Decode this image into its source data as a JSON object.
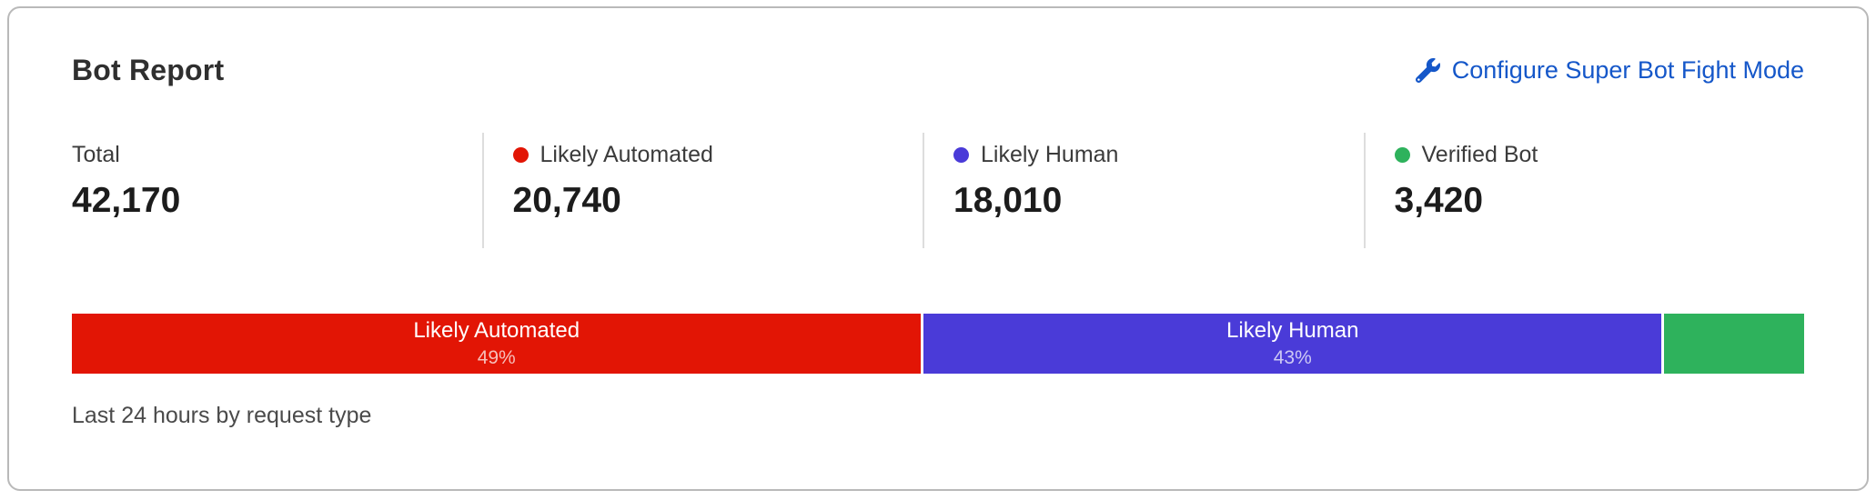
{
  "card": {
    "title": "Bot Report",
    "footnote": "Last 24 hours by request type",
    "configure_link": {
      "label": "Configure Super Bot Fight Mode",
      "icon": "wrench-icon",
      "color": "#1557c9"
    }
  },
  "stats": [
    {
      "label": "Total",
      "value": "42,170",
      "color": null
    },
    {
      "label": "Likely Automated",
      "value": "20,740",
      "color": "#e21505"
    },
    {
      "label": "Likely Human",
      "value": "18,010",
      "color": "#4a3bd8"
    },
    {
      "label": "Verified Bot",
      "value": "3,420",
      "color": "#2eb25c"
    }
  ],
  "chart_data": {
    "type": "bar",
    "stacked": true,
    "title": "Bot Report",
    "subtitle": "Last 24 hours by request type",
    "unit": "requests",
    "total": 42170,
    "segments": [
      {
        "name": "Likely Automated",
        "value": 20740,
        "percent": 49.18,
        "label": "Likely Automated",
        "pct_label": "49%",
        "color": "#e21505"
      },
      {
        "name": "Likely Human",
        "value": 18010,
        "percent": 42.71,
        "label": "Likely Human",
        "pct_label": "43%",
        "color": "#4a3bd8"
      },
      {
        "name": "Verified Bot",
        "value": 3420,
        "percent": 8.11,
        "label": "",
        "pct_label": "",
        "color": "#2eb25c"
      }
    ]
  }
}
